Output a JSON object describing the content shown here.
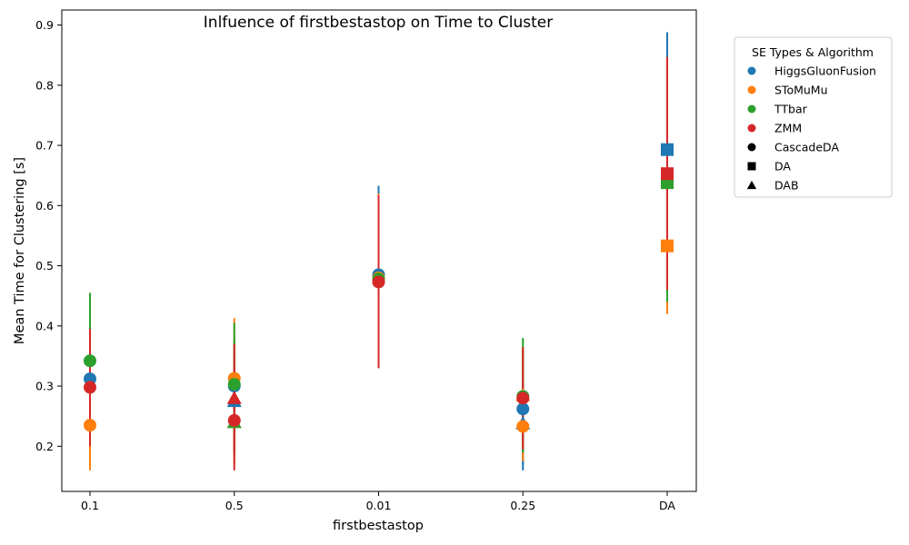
{
  "chart_data": {
    "type": "scatter",
    "title": "Inlfuence of firstbestastop on Time to Cluster",
    "xlabel": "firstbestastop",
    "ylabel": "Mean Time for Clustering [s]",
    "categories": [
      "0.1",
      "0.5",
      "0.01",
      "0.25",
      "DA"
    ],
    "ylim": [
      0.125,
      0.925
    ],
    "yticks": [
      "0.2",
      "0.3",
      "0.4",
      "0.5",
      "0.6",
      "0.7",
      "0.8",
      "0.9"
    ],
    "grid": false,
    "legend": {
      "title": "SE Types & Algorithm",
      "placement": "outside-top-right",
      "color_entries": [
        {
          "label": "HiggsGluonFusion",
          "color": "#1f77b4"
        },
        {
          "label": "SToMuMu",
          "color": "#ff7f0e"
        },
        {
          "label": "TTbar",
          "color": "#2ca02c"
        },
        {
          "label": "ZMM",
          "color": "#d62728"
        }
      ],
      "marker_entries": [
        {
          "label": "CascadeDA",
          "marker": "circle"
        },
        {
          "label": "DA",
          "marker": "square"
        },
        {
          "label": "DAB",
          "marker": "triangle"
        }
      ]
    },
    "series": [
      {
        "sample": "HiggsGluonFusion",
        "color": "#1f77b4",
        "points": [
          {
            "x": "0.1",
            "y": 0.312,
            "low": 0.2,
            "high": 0.37,
            "marker": "circle"
          },
          {
            "x": "0.5",
            "y": 0.275,
            "low": 0.2,
            "high": 0.37,
            "marker": "triangle"
          },
          {
            "x": "0.5",
            "y": 0.3,
            "low": 0.22,
            "high": 0.38,
            "marker": "circle"
          },
          {
            "x": "0.01",
            "y": 0.485,
            "low": 0.33,
            "high": 0.633,
            "marker": "circle"
          },
          {
            "x": "0.25",
            "y": 0.262,
            "low": 0.16,
            "high": 0.36,
            "marker": "circle"
          },
          {
            "x": "0.25",
            "y": 0.238,
            "low": 0.17,
            "high": 0.31,
            "marker": "triangle"
          },
          {
            "x": "DA",
            "y": 0.693,
            "low": 0.47,
            "high": 0.888,
            "marker": "square"
          }
        ]
      },
      {
        "sample": "SToMuMu",
        "color": "#ff7f0e",
        "points": [
          {
            "x": "0.1",
            "y": 0.235,
            "low": 0.16,
            "high": 0.31,
            "marker": "circle"
          },
          {
            "x": "0.5",
            "y": 0.313,
            "low": 0.2,
            "high": 0.413,
            "marker": "circle"
          },
          {
            "x": "0.5",
            "y": 0.24,
            "low": 0.17,
            "high": 0.31,
            "marker": "triangle"
          },
          {
            "x": "0.01",
            "y": 0.48,
            "low": 0.34,
            "high": 0.62,
            "marker": "circle"
          },
          {
            "x": "0.25",
            "y": 0.233,
            "low": 0.175,
            "high": 0.29,
            "marker": "circle"
          },
          {
            "x": "0.25",
            "y": 0.285,
            "low": 0.2,
            "high": 0.36,
            "marker": "triangle"
          },
          {
            "x": "DA",
            "y": 0.533,
            "low": 0.42,
            "high": 0.65,
            "marker": "square"
          }
        ]
      },
      {
        "sample": "TTbar",
        "color": "#2ca02c",
        "points": [
          {
            "x": "0.1",
            "y": 0.342,
            "low": 0.23,
            "high": 0.455,
            "marker": "circle"
          },
          {
            "x": "0.5",
            "y": 0.303,
            "low": 0.19,
            "high": 0.405,
            "marker": "circle"
          },
          {
            "x": "0.5",
            "y": 0.24,
            "low": 0.185,
            "high": 0.3,
            "marker": "triangle"
          },
          {
            "x": "0.01",
            "y": 0.478,
            "low": 0.34,
            "high": 0.615,
            "marker": "circle"
          },
          {
            "x": "0.25",
            "y": 0.283,
            "low": 0.19,
            "high": 0.38,
            "marker": "circle"
          },
          {
            "x": "DA",
            "y": 0.638,
            "low": 0.44,
            "high": 0.8,
            "marker": "square"
          }
        ]
      },
      {
        "sample": "ZMM",
        "color": "#d62728",
        "points": [
          {
            "x": "0.1",
            "y": 0.298,
            "low": 0.2,
            "high": 0.395,
            "marker": "circle"
          },
          {
            "x": "0.5",
            "y": 0.243,
            "low": 0.16,
            "high": 0.33,
            "marker": "circle"
          },
          {
            "x": "0.5",
            "y": 0.28,
            "low": 0.19,
            "high": 0.37,
            "marker": "triangle"
          },
          {
            "x": "0.01",
            "y": 0.473,
            "low": 0.33,
            "high": 0.617,
            "marker": "circle"
          },
          {
            "x": "0.25",
            "y": 0.28,
            "low": 0.195,
            "high": 0.365,
            "marker": "circle"
          },
          {
            "x": "DA",
            "y": 0.653,
            "low": 0.46,
            "high": 0.847,
            "marker": "square"
          }
        ]
      }
    ]
  }
}
